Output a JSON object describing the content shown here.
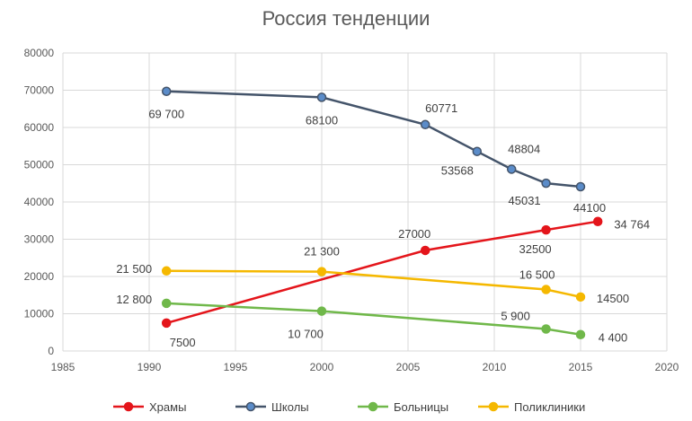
{
  "chart_data": {
    "type": "scatter",
    "title": "Россия тенденции",
    "xlabel": "",
    "ylabel": "",
    "xlim": [
      1985,
      2020
    ],
    "ylim": [
      0,
      80000
    ],
    "xticks": [
      1985,
      1990,
      1995,
      2000,
      2005,
      2010,
      2015,
      2020
    ],
    "yticks": [
      0,
      10000,
      20000,
      30000,
      40000,
      50000,
      60000,
      70000,
      80000
    ],
    "grid": true,
    "legend_position": "bottom",
    "series": [
      {
        "name": "Храмы",
        "color": "#e4151b",
        "points": [
          {
            "x": 1991,
            "y": 7500,
            "label": "7500"
          },
          {
            "x": 2006,
            "y": 27000,
            "label": "27000"
          },
          {
            "x": 2013,
            "y": 32500,
            "label": "32500"
          },
          {
            "x": 2016,
            "y": 34764,
            "label": "34 764"
          }
        ]
      },
      {
        "name": "Школы",
        "color": "#44546a",
        "marker": "#5b8cc9",
        "points": [
          {
            "x": 1991,
            "y": 69700,
            "label": "69 700"
          },
          {
            "x": 2000,
            "y": 68100,
            "label": "68100"
          },
          {
            "x": 2006,
            "y": 60771,
            "label": "60771"
          },
          {
            "x": 2009,
            "y": 53568,
            "label": "53568"
          },
          {
            "x": 2011,
            "y": 48804,
            "label": "48804"
          },
          {
            "x": 2013,
            "y": 45031,
            "label": "45031"
          },
          {
            "x": 2015,
            "y": 44100,
            "label": "44100"
          }
        ]
      },
      {
        "name": "Больницы",
        "color": "#70b84a",
        "points": [
          {
            "x": 1991,
            "y": 12800,
            "label": "12 800"
          },
          {
            "x": 2000,
            "y": 10700,
            "label": "10 700"
          },
          {
            "x": 2013,
            "y": 5900,
            "label": "5 900"
          },
          {
            "x": 2015,
            "y": 4400,
            "label": "4 400"
          }
        ]
      },
      {
        "name": "Поликлиники",
        "color": "#f5b800",
        "points": [
          {
            "x": 1991,
            "y": 21500,
            "label": "21 500"
          },
          {
            "x": 2000,
            "y": 21300,
            "label": "21 300"
          },
          {
            "x": 2013,
            "y": 16500,
            "label": "16 500"
          },
          {
            "x": 2015,
            "y": 14500,
            "label": "14500"
          }
        ]
      }
    ]
  }
}
